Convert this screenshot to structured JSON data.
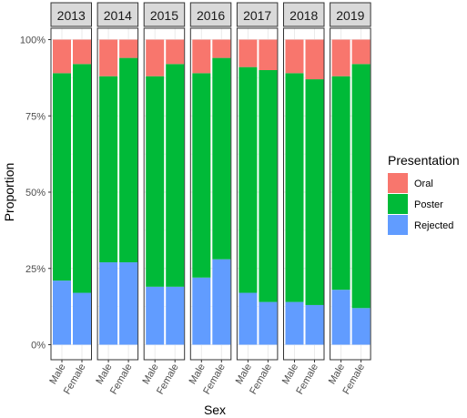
{
  "chart_data": {
    "type": "bar",
    "stacked": true,
    "xlabel": "Sex",
    "ylabel": "Proportion",
    "ylim": [
      0,
      1
    ],
    "yticks": [
      "0%",
      "25%",
      "50%",
      "75%",
      "100%"
    ],
    "facets": [
      "2013",
      "2014",
      "2015",
      "2016",
      "2017",
      "2018",
      "2019"
    ],
    "categories": [
      "Male",
      "Female"
    ],
    "legend": {
      "title": "Presentation",
      "position": "right"
    },
    "series": [
      {
        "name": "Oral",
        "color": "#F8766D",
        "values": [
          [
            0.11,
            0.08
          ],
          [
            0.12,
            0.06
          ],
          [
            0.12,
            0.08
          ],
          [
            0.11,
            0.06
          ],
          [
            0.09,
            0.1
          ],
          [
            0.11,
            0.13
          ],
          [
            0.12,
            0.08
          ]
        ]
      },
      {
        "name": "Poster",
        "color": "#00BA38",
        "values": [
          [
            0.68,
            0.75
          ],
          [
            0.61,
            0.67
          ],
          [
            0.69,
            0.73
          ],
          [
            0.67,
            0.66
          ],
          [
            0.74,
            0.76
          ],
          [
            0.75,
            0.74
          ],
          [
            0.7,
            0.8
          ]
        ]
      },
      {
        "name": "Rejected",
        "color": "#619CFF",
        "values": [
          [
            0.21,
            0.17
          ],
          [
            0.27,
            0.27
          ],
          [
            0.19,
            0.19
          ],
          [
            0.22,
            0.28
          ],
          [
            0.17,
            0.14
          ],
          [
            0.14,
            0.13
          ],
          [
            0.18,
            0.12
          ]
        ]
      }
    ]
  }
}
